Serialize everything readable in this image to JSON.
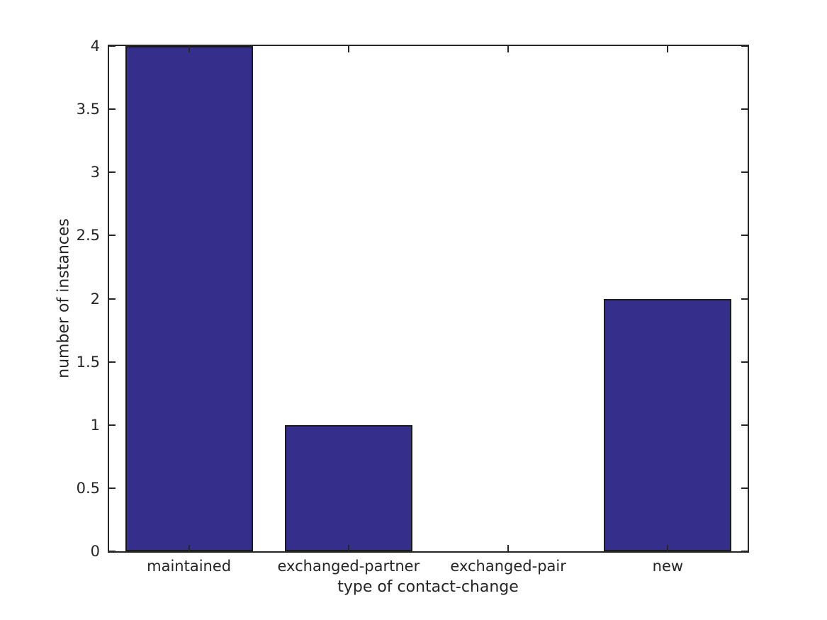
{
  "figure": {
    "background_color": "#ffffff",
    "text_color": "#262626",
    "axis_color": "#262626"
  },
  "chart_data": {
    "type": "bar",
    "title": "",
    "xlabel": "type of contact-change",
    "ylabel": "number of instances",
    "categories": [
      "maintained",
      "exchanged-partner",
      "exchanged-pair",
      "new"
    ],
    "values": [
      4,
      1,
      0,
      2
    ],
    "ylim": [
      0,
      4
    ],
    "yticks": [
      0,
      0.5,
      1,
      1.5,
      2,
      2.5,
      3,
      3.5,
      4
    ],
    "grid": false,
    "legend": "none",
    "bar_color": "#352e8b",
    "bar_edge_color": "#1a1a1a",
    "bar_width_fraction": 0.8,
    "tick_direction": "in",
    "box": "on"
  }
}
